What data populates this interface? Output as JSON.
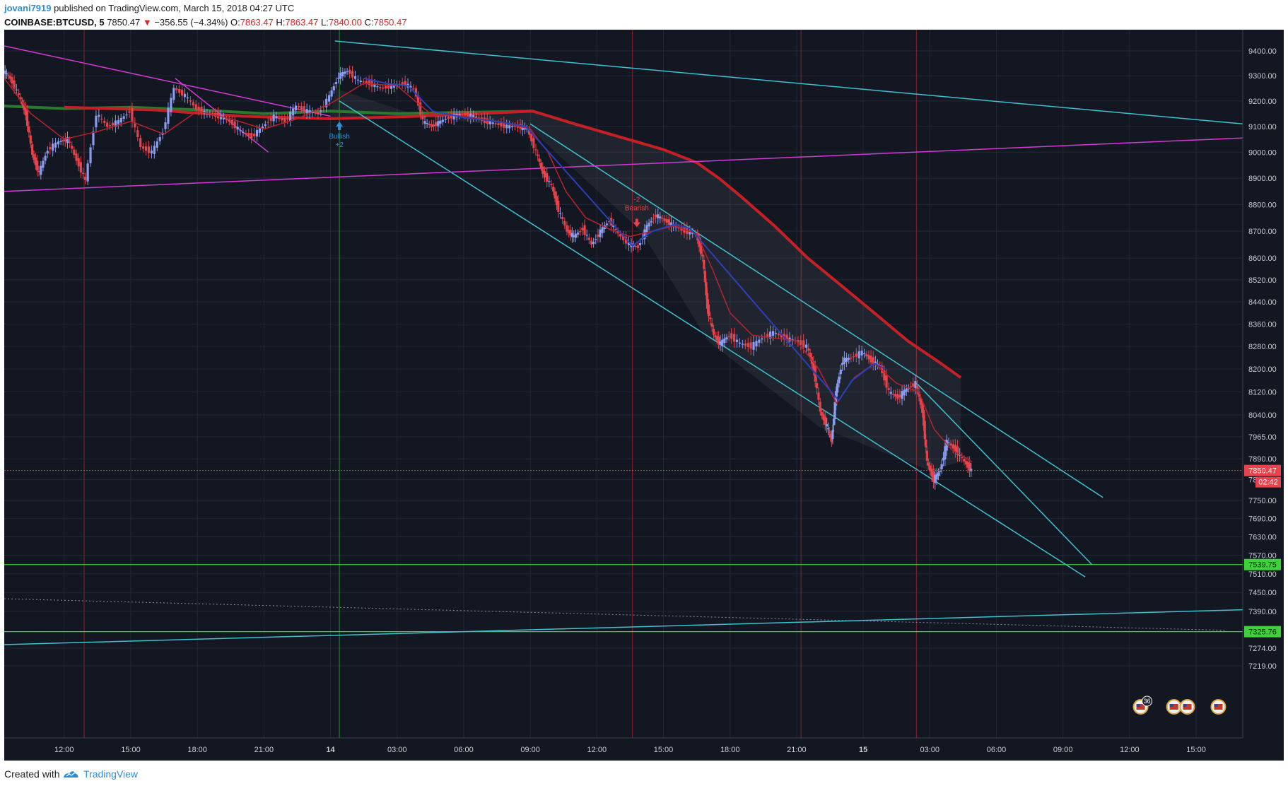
{
  "header": {
    "author": "jovani7919",
    "published": "published on TradingView.com, March 15, 2018 04:27 UTC",
    "symbol": "COINBASE:BTCUSD, 5",
    "price": "7850.47",
    "change": "−356.55 (−4.34%)",
    "open_label": "O:",
    "open": "7863.47",
    "high_label": "H:",
    "high": "7863.47",
    "low_label": "L:",
    "low": "7840.00",
    "close_label": "C:",
    "close": "7850.47"
  },
  "footer": {
    "created": "Created with",
    "brand": "TradingView"
  },
  "colors": {
    "background": "#131722",
    "up": "#8a9bf0",
    "down": "#e8424a",
    "channel": "#3fc1d0",
    "magenta": "#d23ad6",
    "ma200": "#c42026",
    "support": "#3fd13a",
    "price_line": "#e8424a"
  },
  "chart_data": {
    "type": "candlestick",
    "symbol": "COINBASE:BTCUSD",
    "interval": "5",
    "y_ticks": [
      "9400.00",
      "9300.00",
      "9200.00",
      "9100.00",
      "9000.00",
      "8900.00",
      "8800.00",
      "8700.00",
      "8600.00",
      "8520.00",
      "8440.00",
      "8360.00",
      "8280.00",
      "8200.00",
      "8120.00",
      "8040.00",
      "7965.00",
      "7890.00",
      "7820.00",
      "7750.00",
      "7690.00",
      "7630.00",
      "7570.00",
      "7510.00",
      "7450.00",
      "7390.00",
      "7274.00",
      "7219.00"
    ],
    "x_ticks": [
      {
        "label": "12:00",
        "h": 12
      },
      {
        "label": "15:00",
        "h": 15
      },
      {
        "label": "18:00",
        "h": 18
      },
      {
        "label": "21:00",
        "h": 21
      },
      {
        "label": "14",
        "h": 24
      },
      {
        "label": "03:00",
        "h": 27
      },
      {
        "label": "06:00",
        "h": 30
      },
      {
        "label": "09:00",
        "h": 33
      },
      {
        "label": "12:00",
        "h": 36
      },
      {
        "label": "15:00",
        "h": 39
      },
      {
        "label": "18:00",
        "h": 42
      },
      {
        "label": "21:00",
        "h": 45
      },
      {
        "label": "15",
        "h": 48
      },
      {
        "label": "03:00",
        "h": 51
      },
      {
        "label": "06:00",
        "h": 54
      },
      {
        "label": "09:00",
        "h": 57
      },
      {
        "label": "12:00",
        "h": 60
      },
      {
        "label": "15:00",
        "h": 63
      }
    ],
    "x_range_hours": [
      9.3,
      65.1
    ],
    "price_path": [
      [
        9.3,
        9320
      ],
      [
        9.6,
        9290
      ],
      [
        10.0,
        9220
      ],
      [
        10.3,
        9150
      ],
      [
        10.6,
        8990
      ],
      [
        10.9,
        8920
      ],
      [
        11.3,
        9010
      ],
      [
        11.8,
        9040
      ],
      [
        12.2,
        9050
      ],
      [
        12.6,
        8970
      ],
      [
        13.0,
        8890
      ],
      [
        13.5,
        9150
      ],
      [
        14.0,
        9100
      ],
      [
        14.5,
        9120
      ],
      [
        15.0,
        9160
      ],
      [
        15.5,
        9020
      ],
      [
        16.0,
        9000
      ],
      [
        16.5,
        9080
      ],
      [
        17.0,
        9250
      ],
      [
        17.5,
        9220
      ],
      [
        18.0,
        9170
      ],
      [
        18.5,
        9150
      ],
      [
        19.0,
        9140
      ],
      [
        19.5,
        9120
      ],
      [
        20.0,
        9080
      ],
      [
        20.5,
        9060
      ],
      [
        21.0,
        9100
      ],
      [
        21.5,
        9140
      ],
      [
        22.0,
        9120
      ],
      [
        22.5,
        9180
      ],
      [
        23.0,
        9160
      ],
      [
        23.5,
        9150
      ],
      [
        24.0,
        9220
      ],
      [
        24.4,
        9300
      ],
      [
        24.8,
        9320
      ],
      [
        25.3,
        9280
      ],
      [
        25.8,
        9270
      ],
      [
        26.3,
        9250
      ],
      [
        26.8,
        9260
      ],
      [
        27.3,
        9270
      ],
      [
        27.8,
        9250
      ],
      [
        28.2,
        9120
      ],
      [
        28.6,
        9100
      ],
      [
        29.0,
        9120
      ],
      [
        29.5,
        9140
      ],
      [
        30.0,
        9150
      ],
      [
        30.5,
        9140
      ],
      [
        31.0,
        9120
      ],
      [
        31.5,
        9110
      ],
      [
        32.0,
        9100
      ],
      [
        32.5,
        9100
      ],
      [
        32.9,
        9090
      ],
      [
        33.3,
        9000
      ],
      [
        33.6,
        8920
      ],
      [
        34.0,
        8870
      ],
      [
        34.3,
        8780
      ],
      [
        34.7,
        8700
      ],
      [
        35.0,
        8680
      ],
      [
        35.4,
        8710
      ],
      [
        35.8,
        8650
      ],
      [
        36.2,
        8700
      ],
      [
        36.6,
        8740
      ],
      [
        37.0,
        8690
      ],
      [
        37.5,
        8650
      ],
      [
        37.9,
        8640
      ],
      [
        38.3,
        8720
      ],
      [
        38.7,
        8760
      ],
      [
        39.1,
        8740
      ],
      [
        39.5,
        8720
      ],
      [
        40.0,
        8700
      ],
      [
        40.5,
        8690
      ],
      [
        40.8,
        8600
      ],
      [
        41.0,
        8420
      ],
      [
        41.3,
        8320
      ],
      [
        41.6,
        8290
      ],
      [
        42.0,
        8320
      ],
      [
        42.5,
        8290
      ],
      [
        43.0,
        8280
      ],
      [
        43.5,
        8310
      ],
      [
        44.0,
        8330
      ],
      [
        44.5,
        8310
      ],
      [
        45.0,
        8300
      ],
      [
        45.5,
        8280
      ],
      [
        45.8,
        8200
      ],
      [
        46.1,
        8050
      ],
      [
        46.4,
        8000
      ],
      [
        46.6,
        7950
      ],
      [
        46.8,
        8120
      ],
      [
        47.1,
        8230
      ],
      [
        47.5,
        8240
      ],
      [
        48.0,
        8260
      ],
      [
        48.4,
        8230
      ],
      [
        48.8,
        8210
      ],
      [
        49.2,
        8120
      ],
      [
        49.6,
        8100
      ],
      [
        50.0,
        8130
      ],
      [
        50.4,
        8150
      ],
      [
        50.7,
        8050
      ],
      [
        50.9,
        7880
      ],
      [
        51.2,
        7820
      ],
      [
        51.5,
        7850
      ],
      [
        51.8,
        7950
      ],
      [
        52.2,
        7920
      ],
      [
        52.6,
        7880
      ],
      [
        52.9,
        7850
      ]
    ],
    "ema_short": [
      [
        9.3,
        9290
      ],
      [
        10.5,
        9150
      ],
      [
        12.0,
        9050
      ],
      [
        13.5,
        9080
      ],
      [
        15.0,
        9120
      ],
      [
        16.5,
        9070
      ],
      [
        18.0,
        9160
      ],
      [
        19.5,
        9130
      ],
      [
        21.0,
        9090
      ],
      [
        22.5,
        9130
      ],
      [
        24.0,
        9190
      ],
      [
        25.5,
        9270
      ],
      [
        27.0,
        9260
      ],
      [
        28.5,
        9150
      ],
      [
        30.0,
        9140
      ],
      [
        31.5,
        9120
      ],
      [
        33.0,
        9090
      ],
      [
        33.8,
        9000
      ],
      [
        34.6,
        8850
      ],
      [
        35.5,
        8750
      ],
      [
        36.5,
        8710
      ],
      [
        37.5,
        8680
      ],
      [
        38.5,
        8700
      ],
      [
        39.5,
        8720
      ],
      [
        40.5,
        8690
      ],
      [
        41.2,
        8560
      ],
      [
        42.0,
        8400
      ],
      [
        43.0,
        8320
      ],
      [
        44.0,
        8310
      ],
      [
        45.0,
        8300
      ],
      [
        46.0,
        8200
      ],
      [
        46.8,
        8080
      ],
      [
        47.6,
        8170
      ],
      [
        48.5,
        8220
      ],
      [
        49.5,
        8150
      ],
      [
        50.5,
        8120
      ],
      [
        51.2,
        7990
      ],
      [
        52.0,
        7920
      ],
      [
        52.9,
        7880
      ]
    ],
    "ema_blue": [
      [
        25.5,
        9290
      ],
      [
        26.5,
        9270
      ],
      [
        27.5,
        9260
      ],
      [
        28.6,
        9160
      ],
      [
        30.0,
        9135
      ],
      [
        31.5,
        9120
      ],
      [
        32.8,
        9100
      ],
      [
        37.6,
        8645
      ],
      [
        38.5,
        8700
      ],
      [
        39.5,
        8725
      ],
      [
        40.2,
        8710
      ],
      [
        46.9,
        8090
      ],
      [
        47.5,
        8160
      ],
      [
        48.5,
        8220
      ],
      [
        49.0,
        8200
      ]
    ],
    "ma_green": [
      [
        9.3,
        9180
      ],
      [
        12.0,
        9170
      ],
      [
        15.0,
        9175
      ],
      [
        18.0,
        9165
      ],
      [
        21.0,
        9150
      ],
      [
        24.0,
        9160
      ],
      [
        27.0,
        9150
      ],
      [
        30.0,
        9155
      ],
      [
        33.1,
        9160
      ]
    ],
    "ma_red": [
      [
        12.0,
        9175
      ],
      [
        16.0,
        9165
      ],
      [
        20.0,
        9140
      ],
      [
        24.0,
        9130
      ],
      [
        28.0,
        9140
      ],
      [
        33.1,
        9160
      ],
      [
        35.0,
        9110
      ],
      [
        37.0,
        9060
      ],
      [
        39.0,
        9010
      ],
      [
        40.5,
        8960
      ],
      [
        41.5,
        8900
      ],
      [
        42.5,
        8830
      ],
      [
        44.0,
        8720
      ],
      [
        45.5,
        8600
      ],
      [
        47.0,
        8500
      ],
      [
        48.5,
        8400
      ],
      [
        50.0,
        8300
      ],
      [
        51.5,
        8220
      ],
      [
        52.4,
        8170
      ]
    ],
    "trendlines": [
      {
        "name": "upper-channel",
        "color": "channel",
        "points": [
          [
            24.2,
            9440
          ],
          [
            65.1,
            9110
          ]
        ]
      },
      {
        "name": "desc-channel-upper",
        "color": "channel",
        "points": [
          [
            33.0,
            9110
          ],
          [
            58.8,
            7760
          ]
        ]
      },
      {
        "name": "desc-channel-lower",
        "color": "channel",
        "points": [
          [
            24.4,
            9200
          ],
          [
            58.0,
            7500
          ]
        ]
      },
      {
        "name": "wedge-line",
        "color": "channel",
        "points": [
          [
            50.4,
            8150
          ],
          [
            58.3,
            7540
          ]
        ]
      },
      {
        "name": "bottom-rising",
        "color": "channel",
        "points": [
          [
            9.3,
            7285
          ],
          [
            65.1,
            7395
          ]
        ]
      },
      {
        "name": "magenta-descending",
        "color": "magenta",
        "points": [
          [
            9.3,
            9420
          ],
          [
            24.0,
            9140
          ]
        ]
      },
      {
        "name": "magenta-short",
        "color": "magenta",
        "points": [
          [
            17.0,
            9290
          ],
          [
            21.2,
            9000
          ]
        ]
      },
      {
        "name": "magenta-rising",
        "color": "magenta",
        "points": [
          [
            9.3,
            8850
          ],
          [
            65.1,
            9055
          ]
        ]
      }
    ],
    "dotted_line": [
      [
        9.3,
        7430
      ],
      [
        64.3,
        7330
      ]
    ],
    "support_levels": [
      {
        "value": 7539.75,
        "label": "7539.75"
      },
      {
        "value": 7325.76,
        "label": "7325.76"
      }
    ],
    "vertical_markers": [
      {
        "h": 12.9,
        "color": "red"
      },
      {
        "h": 24.4,
        "color": "green"
      },
      {
        "h": 37.6,
        "color": "red"
      },
      {
        "h": 45.2,
        "color": "red"
      },
      {
        "h": 50.4,
        "color": "red"
      }
    ],
    "signals": [
      {
        "type": "bullish",
        "h": 24.4,
        "price": 9130,
        "text": "Bullish",
        "count": "+2"
      },
      {
        "type": "bearish",
        "h": 37.8,
        "price": 8720,
        "text": "Bearish",
        "count": "-2"
      }
    ],
    "current_price": {
      "value": 7850.47,
      "label": "7850.47",
      "countdown": "02:42"
    },
    "events": [
      {
        "h": 60.5,
        "count": "36"
      },
      {
        "h": 62.0
      },
      {
        "h": 62.6
      },
      {
        "h": 64.0
      }
    ]
  }
}
